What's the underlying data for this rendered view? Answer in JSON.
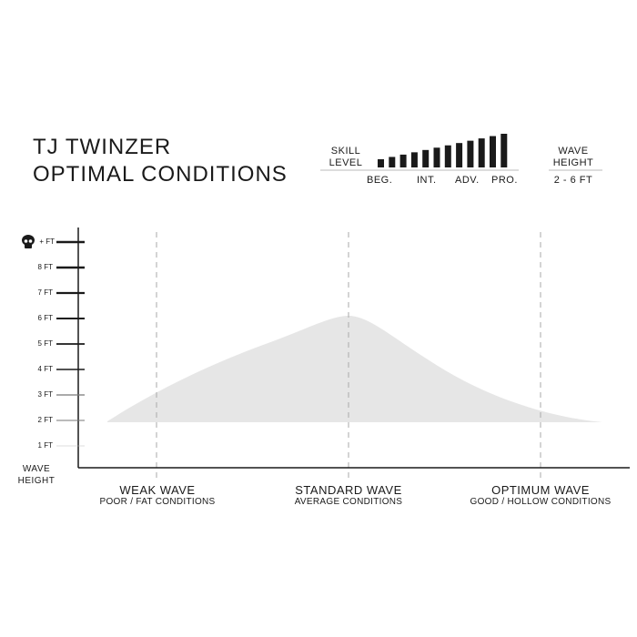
{
  "title": "TJ TWINZER",
  "subtitle": "OPTIMAL CONDITIONS",
  "skill": {
    "label_line1": "SKILL",
    "label_line2": "LEVEL",
    "bars": 12,
    "levels": [
      "BEG.",
      "INT.",
      "ADV.",
      "PRO."
    ]
  },
  "wave_height": {
    "label_line1": "WAVE",
    "label_line2": "HEIGHT",
    "value": "2 - 6 FT"
  },
  "y_axis": {
    "ticks": [
      "+ FT",
      "8 FT",
      "7 FT",
      "6 FT",
      "5 FT",
      "4 FT",
      "3 FT",
      "2 FT",
      "1 FT"
    ],
    "label_line1": "WAVE",
    "label_line2": "HEIGHT",
    "top_icon": "skull-icon"
  },
  "categories": [
    {
      "name": "WEAK WAVE",
      "desc": "POOR / FAT CONDITIONS"
    },
    {
      "name": "STANDARD WAVE",
      "desc": "AVERAGE CONDITIONS"
    },
    {
      "name": "OPTIMUM WAVE",
      "desc": "GOOD / HOLLOW CONDITIONS"
    }
  ],
  "colors": {
    "fill": "#e6e6e6",
    "ink": "#1a1a1a"
  }
}
